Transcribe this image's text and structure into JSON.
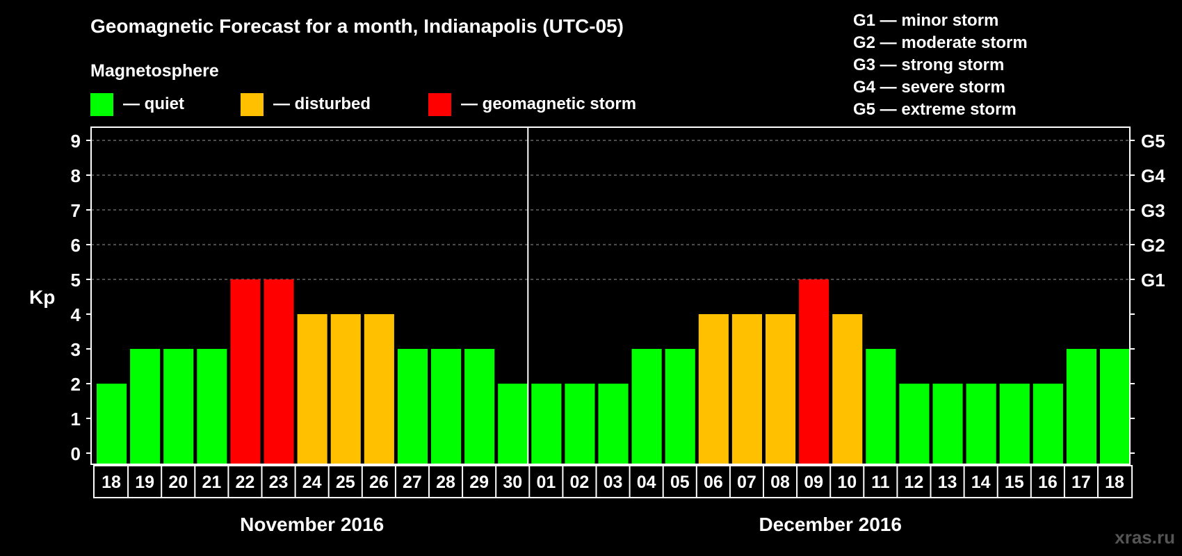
{
  "chart_data": {
    "type": "bar",
    "title": "Geomagnetic Forecast for a month, Indianapolis (UTC-05)",
    "subtitle": "Magnetosphere",
    "ylabel": "Kp",
    "ylim": [
      0,
      9
    ],
    "yticks": [
      "0",
      "1",
      "2",
      "3",
      "4",
      "5",
      "6",
      "7",
      "8",
      "9"
    ],
    "right_axis_labels": [
      {
        "kp": 5,
        "label": "G1"
      },
      {
        "kp": 6,
        "label": "G2"
      },
      {
        "kp": 7,
        "label": "G3"
      },
      {
        "kp": 8,
        "label": "G4"
      },
      {
        "kp": 9,
        "label": "G5"
      }
    ],
    "legend": [
      {
        "label": "— quiet",
        "color": "#00ff00"
      },
      {
        "label": "— disturbed",
        "color": "#ffc000"
      },
      {
        "label": "— geomagnetic storm",
        "color": "#ff0000"
      }
    ],
    "storm_scale": [
      "G1 — minor storm",
      "G2 — moderate storm",
      "G3 — strong storm",
      "G4 — severe storm",
      "G5 — extreme storm"
    ],
    "categories": [
      "18",
      "19",
      "20",
      "21",
      "22",
      "23",
      "24",
      "25",
      "26",
      "27",
      "28",
      "29",
      "30",
      "01",
      "02",
      "03",
      "04",
      "05",
      "06",
      "07",
      "08",
      "09",
      "10",
      "11",
      "12",
      "13",
      "14",
      "15",
      "16",
      "17",
      "18"
    ],
    "values": [
      2,
      3,
      3,
      3,
      5,
      5,
      4,
      4,
      4,
      3,
      3,
      3,
      2,
      2,
      2,
      2,
      3,
      3,
      4,
      4,
      4,
      5,
      4,
      3,
      2,
      2,
      2,
      2,
      2,
      3,
      3
    ],
    "months": [
      {
        "label": "November 2016",
        "start_index": 0,
        "end_index": 12
      },
      {
        "label": "December 2016",
        "start_index": 13,
        "end_index": 30
      }
    ],
    "grid": "dashed at Kp 5-9",
    "colors": {
      "quiet": "#00ff00",
      "disturbed": "#ffc000",
      "storm": "#ff0000"
    }
  },
  "watermark": "xras.ru"
}
